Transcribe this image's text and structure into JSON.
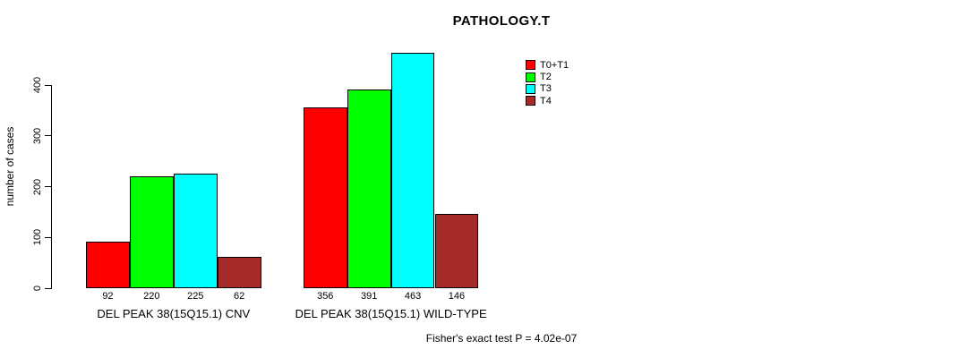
{
  "chart_data": {
    "type": "bar",
    "title": "PATHOLOGY.T",
    "ylabel": "number of cases",
    "xlabel": "",
    "categories": [
      "DEL PEAK 38(15Q15.1) CNV",
      "DEL PEAK 38(15Q15.1) WILD-TYPE"
    ],
    "series": [
      {
        "name": "T0+T1",
        "color": "#ff0000",
        "values": [
          92,
          356
        ]
      },
      {
        "name": "T2",
        "color": "#00ff00",
        "values": [
          220,
          391
        ]
      },
      {
        "name": "T3",
        "color": "#00ffff",
        "values": [
          225,
          463
        ]
      },
      {
        "name": "T4",
        "color": "#a52a2a",
        "values": [
          62,
          146
        ]
      }
    ],
    "yticks": [
      0,
      100,
      200,
      300,
      400
    ],
    "ylim": [
      0,
      480
    ],
    "grid": false,
    "legend_position": "top-right",
    "annotation": "Fisher's exact test P = 4.02e-07",
    "colors": {
      "bar_border": "#000000",
      "text": "#000000",
      "background": "#ffffff"
    }
  }
}
